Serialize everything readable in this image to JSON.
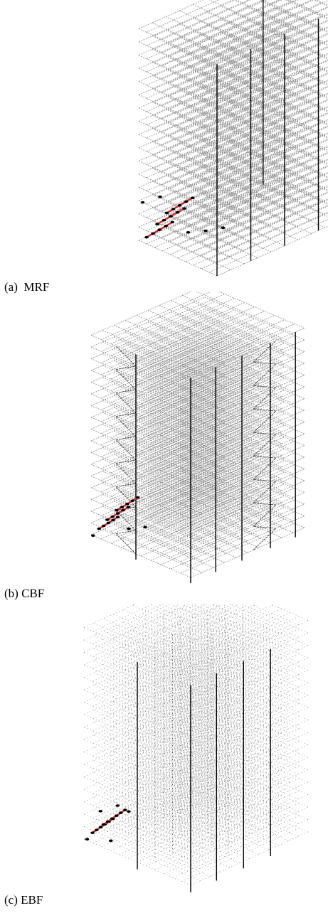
{
  "figures": [
    {
      "id": "a",
      "caption": "(a)  MRF",
      "system": "MRF"
    },
    {
      "id": "b",
      "caption": "(b) CBF",
      "system": "CBF"
    },
    {
      "id": "c",
      "caption": "(c) EBF",
      "system": "EBF"
    }
  ],
  "colors": {
    "grid": "#8a8a8a",
    "column": "#000000",
    "damaged_beam": "#e0201c",
    "plastic_hinge": "#000000",
    "brace": "#444444"
  }
}
